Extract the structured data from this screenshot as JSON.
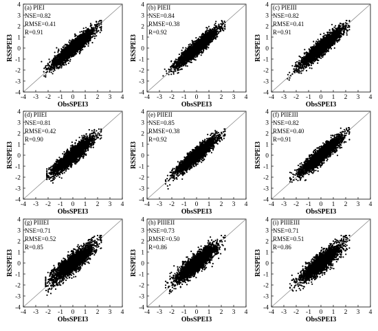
{
  "chart_data": [
    {
      "type": "scatter",
      "panel": "(a) PIEI",
      "stats": [
        "NSE=0.82",
        "RMSE=0.41",
        "R=0.91"
      ],
      "xlabel": "ObsSPEI3",
      "ylabel": "RSSPEI3",
      "xlim": [
        -4,
        4
      ],
      "ylim": [
        -4,
        4
      ],
      "xticks": [
        "-4",
        "-3",
        "-2",
        "-1",
        "0",
        "1",
        "2",
        "3",
        "4"
      ],
      "yticks": [
        "4",
        "3",
        "2",
        "1",
        "0",
        "-1",
        "-2",
        "-3",
        "-4"
      ],
      "reference_line": "1:1",
      "r": 0.91,
      "n_points": 2600,
      "x_range": [
        -2.6,
        2.3
      ],
      "seed": 11
    },
    {
      "type": "scatter",
      "panel": "(b) PIEII",
      "stats": [
        "NSE=0.84",
        "RMSE=0.38",
        "R=0.92"
      ],
      "xlabel": "ObsSPEI3",
      "ylabel": "RSSPEI3",
      "xlim": [
        -4,
        4
      ],
      "ylim": [
        -4,
        4
      ],
      "xticks": [
        "-4",
        "-3",
        "-2",
        "-1",
        "0",
        "1",
        "2",
        "3",
        "4"
      ],
      "yticks": [
        "4",
        "3",
        "2",
        "1",
        "0",
        "-1",
        "-2",
        "-3",
        "-4"
      ],
      "reference_line": "1:1",
      "r": 0.92,
      "n_points": 2600,
      "x_range": [
        -2.7,
        2.3
      ],
      "seed": 23
    },
    {
      "type": "scatter",
      "panel": "(c) PIEIII",
      "stats": [
        "NSE=0.82",
        "RMSE=0.41",
        "R=0.91"
      ],
      "xlabel": "ObsSPEI3",
      "ylabel": "RSSPEI3",
      "xlim": [
        -4,
        4
      ],
      "ylim": [
        -4,
        4
      ],
      "xticks": [
        "-4",
        "-3",
        "-2",
        "-1",
        "0",
        "1",
        "2",
        "3",
        "4"
      ],
      "yticks": [
        "4",
        "3",
        "2",
        "1",
        "0",
        "-1",
        "-2",
        "-3",
        "-4"
      ],
      "reference_line": "1:1",
      "r": 0.91,
      "n_points": 2600,
      "x_range": [
        -2.7,
        2.3
      ],
      "seed": 37
    },
    {
      "type": "scatter",
      "panel": "(d) PIIEI",
      "stats": [
        "NSE=0.81",
        "RMSE=0.42",
        "R=0.90"
      ],
      "xlabel": "ObsSPEI3",
      "ylabel": "RSSPEI3",
      "xlim": [
        -4,
        4
      ],
      "ylim": [
        -4,
        4
      ],
      "xticks": [
        "-4",
        "-3",
        "-2",
        "-1",
        "0",
        "1",
        "2",
        "3",
        "4"
      ],
      "yticks": [
        "4",
        "3",
        "2",
        "1",
        "0",
        "-1",
        "-2",
        "-3",
        "-4"
      ],
      "reference_line": "1:1",
      "r": 0.9,
      "n_points": 2600,
      "x_range": [
        -2.1,
        2.3
      ],
      "seed": 41
    },
    {
      "type": "scatter",
      "panel": "(e) PIIEII",
      "stats": [
        "NSE=0.85",
        "RMSE=0.38",
        "R=0.92"
      ],
      "xlabel": "ObsSPEI3",
      "ylabel": "RSSPEI3",
      "xlim": [
        -4,
        4
      ],
      "ylim": [
        -4,
        4
      ],
      "xticks": [
        "-4",
        "-3",
        "-2",
        "-1",
        "0",
        "1",
        "2",
        "3",
        "4"
      ],
      "yticks": [
        "4",
        "3",
        "2",
        "1",
        "0",
        "-1",
        "-2",
        "-3",
        "-4"
      ],
      "reference_line": "1:1",
      "r": 0.92,
      "n_points": 2600,
      "x_range": [
        -2.5,
        2.3
      ],
      "seed": 53
    },
    {
      "type": "scatter",
      "panel": "(f) PIIEIII",
      "stats": [
        "NSE=0.82",
        "RMSE=0.40",
        "R=0.91"
      ],
      "xlabel": "ObsSPEI3",
      "ylabel": "RSSPEI3",
      "xlim": [
        -4,
        4
      ],
      "ylim": [
        -4,
        4
      ],
      "xticks": [
        "-4",
        "-3",
        "-2",
        "-1",
        "0",
        "1",
        "2",
        "3",
        "4"
      ],
      "yticks": [
        "4",
        "3",
        "2",
        "1",
        "0",
        "-1",
        "-2",
        "-3",
        "-4"
      ],
      "reference_line": "1:1",
      "r": 0.91,
      "n_points": 2600,
      "x_range": [
        -2.5,
        2.3
      ],
      "seed": 67
    },
    {
      "type": "scatter",
      "panel": "(g) PIIIEI",
      "stats": [
        "NSE=0.71",
        "RMSE=0.52",
        "R=0.85"
      ],
      "xlabel": "ObsSPEI3",
      "ylabel": "RSSPEI3",
      "xlim": [
        -4,
        4
      ],
      "ylim": [
        -4,
        4
      ],
      "xticks": [
        "-4",
        "-3",
        "-2",
        "-1",
        "0",
        "1",
        "2",
        "3",
        "4"
      ],
      "yticks": [
        "4",
        "3",
        "2",
        "1",
        "0",
        "-1",
        "-2",
        "-3",
        "-4"
      ],
      "reference_line": "1:1",
      "r": 0.85,
      "n_points": 2600,
      "x_range": [
        -2.2,
        2.3
      ],
      "seed": 71
    },
    {
      "type": "scatter",
      "panel": "(h) PIIIEII",
      "stats": [
        "NSE=0.73",
        "RMSE=0.50",
        "R=0.86"
      ],
      "xlabel": "ObsSPEI3",
      "ylabel": "RSSPEI3",
      "xlim": [
        -4,
        4
      ],
      "ylim": [
        -4,
        4
      ],
      "xticks": [
        "-4",
        "-3",
        "-2",
        "-1",
        "0",
        "1",
        "2",
        "3",
        "4"
      ],
      "yticks": [
        "4",
        "3",
        "2",
        "1",
        "0",
        "-1",
        "-2",
        "-3",
        "-4"
      ],
      "reference_line": "1:1",
      "r": 0.86,
      "n_points": 2600,
      "x_range": [
        -2.5,
        2.3
      ],
      "seed": 83
    },
    {
      "type": "scatter",
      "panel": "(i) PIIIEIII",
      "stats": [
        "NSE=0.71",
        "RMSE=0.51",
        "R=0.86"
      ],
      "xlabel": "ObsSPEI3",
      "ylabel": "RSSPEI3",
      "xlim": [
        -4,
        4
      ],
      "ylim": [
        -4,
        4
      ],
      "xticks": [
        "-4",
        "-3",
        "-2",
        "-1",
        "0",
        "1",
        "2",
        "3",
        "4"
      ],
      "yticks": [
        "4",
        "3",
        "2",
        "1",
        "0",
        "-1",
        "-2",
        "-3",
        "-4"
      ],
      "reference_line": "1:1",
      "r": 0.86,
      "n_points": 2600,
      "x_range": [
        -2.5,
        2.3
      ],
      "seed": 97
    }
  ]
}
